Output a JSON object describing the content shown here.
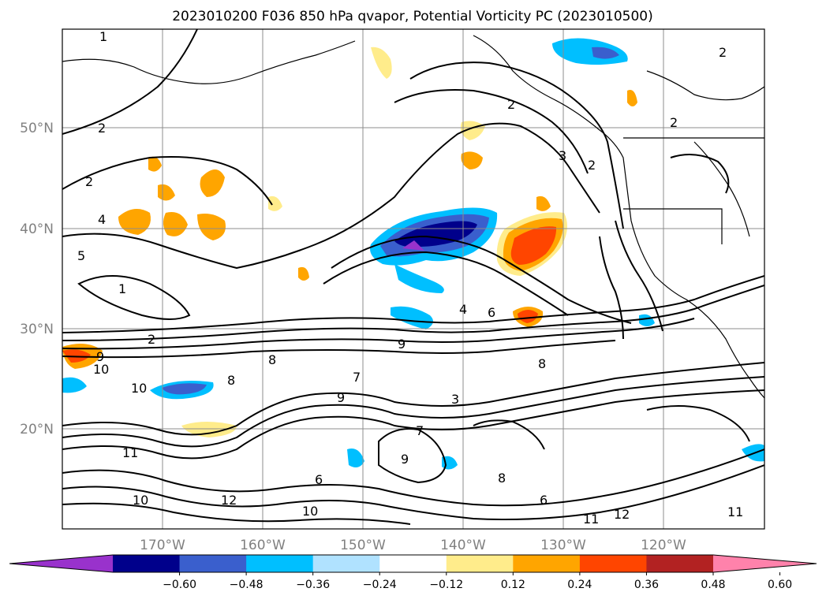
{
  "title": "2023010200 F036 850 hPa qvapor, Potential Vorticity PC (2023010500)",
  "map": {
    "lon_labels": [
      "170°W",
      "160°W",
      "150°W",
      "140°W",
      "130°W",
      "120°W"
    ],
    "lat_labels": [
      "50°N",
      "40°N",
      "30°N",
      "20°N"
    ],
    "gridlines": true
  },
  "colorbar": {
    "ticks": [
      "−0.60",
      "−0.48",
      "−0.36",
      "−0.24",
      "−0.12",
      "0.12",
      "0.24",
      "0.36",
      "0.48",
      "0.60"
    ],
    "colors": [
      "#9932CC",
      "#00008B",
      "#3A5FCD",
      "#00BFFF",
      "#B0E2FF",
      "#FFFFFF",
      "#FFEC8B",
      "#FFA500",
      "#FF4500",
      "#B22222",
      "#FF82AB"
    ],
    "extend": "both"
  },
  "contour_labels": [
    "1",
    "2",
    "2",
    "4",
    "5",
    "1",
    "2",
    "8",
    "9",
    "10",
    "10",
    "8",
    "9",
    "11",
    "10",
    "12",
    "3",
    "4",
    "6",
    "8",
    "9",
    "7",
    "9",
    "6",
    "8",
    "6",
    "11",
    "12",
    "11",
    "10",
    "2",
    "2",
    "3",
    "2",
    "2",
    "7"
  ]
}
